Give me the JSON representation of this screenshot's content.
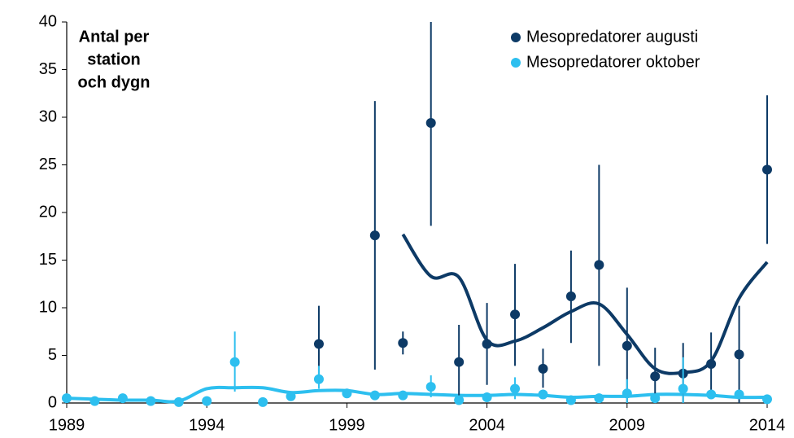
{
  "chart_data": {
    "type": "scatter",
    "annotation": [
      "Antal per",
      "station",
      "och dygn"
    ],
    "xlim": [
      1989,
      2014
    ],
    "xticks": [
      1989,
      1994,
      1999,
      2004,
      2009,
      2014
    ],
    "ylim": [
      0,
      40
    ],
    "yticks": [
      0,
      5,
      10,
      15,
      20,
      25,
      30,
      35,
      40
    ],
    "legend": "upper right",
    "series": [
      {
        "name": "Mesopredatorer augusti",
        "color": "#0d3a66",
        "x": [
          1998,
          2000,
          2001,
          2002,
          2003,
          2004,
          2005,
          2006,
          2007,
          2008,
          2009,
          2010,
          2011,
          2012,
          2013,
          2014
        ],
        "values": [
          6.2,
          17.6,
          6.3,
          29.4,
          4.3,
          6.2,
          9.3,
          3.6,
          11.2,
          14.5,
          6.0,
          2.8,
          3.1,
          4.1,
          5.1,
          24.5
        ],
        "lower": [
          2.3,
          3.5,
          5.1,
          18.6,
          0,
          1.9,
          3.9,
          1.6,
          6.3,
          3.9,
          0,
          0,
          0,
          0.8,
          0,
          16.7
        ],
        "upper": [
          10.2,
          31.7,
          7.5,
          40,
          8.2,
          10.5,
          14.6,
          5.7,
          16,
          25,
          12.1,
          5.8,
          6.3,
          7.4,
          10.2,
          32.3
        ]
      },
      {
        "name": "Mesopredatorer oktober",
        "color": "#2dbfef",
        "x": [
          1989,
          1990,
          1991,
          1992,
          1993,
          1994,
          1995,
          1996,
          1997,
          1998,
          1999,
          2000,
          2001,
          2002,
          2003,
          2004,
          2005,
          2006,
          2007,
          2008,
          2009,
          2010,
          2011,
          2012,
          2013,
          2014
        ],
        "values": [
          0.5,
          0.2,
          0.5,
          0.2,
          0.1,
          0.2,
          4.3,
          0.1,
          0.7,
          2.5,
          1.0,
          0.8,
          0.8,
          1.7,
          0.3,
          0.6,
          1.5,
          0.9,
          0.3,
          0.5,
          1.0,
          0.5,
          1.5,
          0.9,
          0.9,
          0.4
        ],
        "lower": [
          null,
          null,
          null,
          null,
          null,
          null,
          1.2,
          null,
          null,
          1.5,
          null,
          null,
          null,
          0.6,
          null,
          null,
          0.4,
          null,
          null,
          null,
          0,
          null,
          0,
          null,
          null,
          null
        ],
        "upper": [
          null,
          null,
          null,
          null,
          null,
          null,
          7.5,
          null,
          null,
          3.9,
          null,
          null,
          null,
          2.9,
          null,
          null,
          2.7,
          null,
          null,
          null,
          2.5,
          null,
          4.8,
          null,
          null,
          null
        ]
      }
    ],
    "trends": [
      {
        "color": "#0d3a66",
        "x": [
          2001,
          2002,
          2003,
          2004,
          2005,
          2006,
          2007,
          2008,
          2009,
          2010,
          2011,
          2012,
          2013,
          2014
        ],
        "values": [
          17.7,
          13.3,
          13.2,
          6.6,
          6.5,
          7.9,
          9.6,
          10.4,
          7.2,
          3.6,
          3.2,
          4.4,
          11,
          14.8
        ]
      },
      {
        "color": "#2dbfef",
        "x": [
          1989,
          1990,
          1991,
          1992,
          1993,
          1994,
          1995,
          1996,
          1997,
          1998,
          1999,
          2000,
          2001,
          2002,
          2003,
          2004,
          2005,
          2006,
          2007,
          2008,
          2009,
          2010,
          2011,
          2012,
          2013,
          2014
        ],
        "values": [
          0.5,
          0.4,
          0.3,
          0.3,
          0.2,
          1.5,
          1.6,
          1.6,
          1.1,
          1.3,
          1.3,
          0.9,
          1.0,
          0.9,
          0.8,
          0.8,
          0.9,
          0.8,
          0.6,
          0.7,
          0.7,
          0.9,
          0.9,
          0.8,
          0.6,
          0.6
        ]
      }
    ]
  }
}
